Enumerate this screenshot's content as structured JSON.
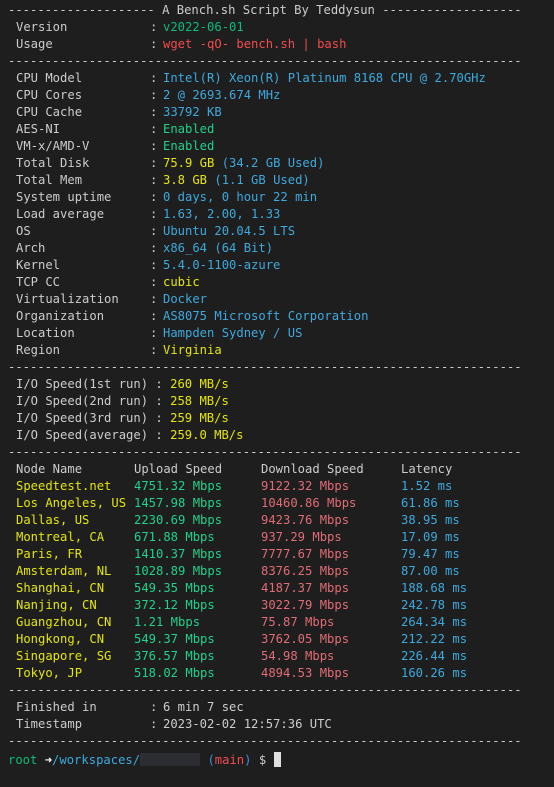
{
  "colors": {
    "bg": "#1e1e1e",
    "text": "#cccccc",
    "cyan": "#3fa9de",
    "yellow": "#e5e510",
    "green": "#23d18b",
    "red": "#f14c4c",
    "red_soft": "#e06c75",
    "blue": "#3b8eea",
    "green_prompt": "#0dbc79"
  },
  "separators": {
    "title": "-------------------- A Bench.sh Script By Teddysun -------------------",
    "plain": "----------------------------------------------------------------------"
  },
  "header": [
    {
      "key": "Version",
      "value": "v2022-06-01",
      "color": "green_prompt"
    },
    {
      "key": "Usage",
      "value": "wget -qO- bench.sh | bash",
      "color": "red"
    }
  ],
  "system": [
    {
      "key": "CPU Model",
      "parts": [
        {
          "t": "Intel(R) Xeon(R) Platinum 8168 CPU @ 2.70GHz",
          "color": "cyan"
        }
      ]
    },
    {
      "key": "CPU Cores",
      "parts": [
        {
          "t": "2 @ 2693.674 MHz",
          "color": "cyan"
        }
      ]
    },
    {
      "key": "CPU Cache",
      "parts": [
        {
          "t": "33792 KB",
          "color": "cyan"
        }
      ]
    },
    {
      "key": "AES-NI",
      "parts": [
        {
          "t": "Enabled",
          "color": "green"
        }
      ]
    },
    {
      "key": "VM-x/AMD-V",
      "parts": [
        {
          "t": "Enabled",
          "color": "green"
        }
      ]
    },
    {
      "key": "Total Disk",
      "parts": [
        {
          "t": "75.9 GB",
          "color": "yellow"
        },
        {
          "t": " (34.2 GB Used)",
          "color": "cyan"
        }
      ]
    },
    {
      "key": "Total Mem",
      "parts": [
        {
          "t": "3.8 GB",
          "color": "yellow"
        },
        {
          "t": " (1.1 GB Used)",
          "color": "cyan"
        }
      ]
    },
    {
      "key": "System uptime",
      "parts": [
        {
          "t": "0 days, 0 hour 22 min",
          "color": "cyan"
        }
      ]
    },
    {
      "key": "Load average",
      "parts": [
        {
          "t": "1.63, 2.00, 1.33",
          "color": "cyan"
        }
      ]
    },
    {
      "key": "OS",
      "parts": [
        {
          "t": "Ubuntu 20.04.5 LTS",
          "color": "cyan"
        }
      ]
    },
    {
      "key": "Arch",
      "parts": [
        {
          "t": "x86_64 (64 Bit)",
          "color": "cyan"
        }
      ]
    },
    {
      "key": "Kernel",
      "parts": [
        {
          "t": "5.4.0-1100-azure",
          "color": "cyan"
        }
      ]
    },
    {
      "key": "TCP CC",
      "parts": [
        {
          "t": "cubic",
          "color": "yellow"
        }
      ]
    },
    {
      "key": "Virtualization",
      "parts": [
        {
          "t": "Docker",
          "color": "cyan"
        }
      ]
    },
    {
      "key": "Organization",
      "parts": [
        {
          "t": "AS8075 Microsoft Corporation",
          "color": "cyan"
        }
      ]
    },
    {
      "key": "Location",
      "parts": [
        {
          "t": "Hampden Sydney / US",
          "color": "cyan"
        }
      ]
    },
    {
      "key": "Region",
      "parts": [
        {
          "t": "Virginia",
          "color": "yellow"
        }
      ]
    }
  ],
  "io": [
    {
      "key": "I/O Speed(1st run)",
      "value": "260 MB/s"
    },
    {
      "key": "I/O Speed(2nd run)",
      "value": "258 MB/s"
    },
    {
      "key": "I/O Speed(3rd run)",
      "value": "259 MB/s"
    },
    {
      "key": "I/O Speed(average)",
      "value": "259.0 MB/s"
    }
  ],
  "speed_table": {
    "headers": [
      "Node Name",
      "Upload Speed",
      "Download Speed",
      "Latency"
    ],
    "rows": [
      [
        "Speedtest.net",
        "4751.32 Mbps",
        "9122.32 Mbps",
        "1.52 ms"
      ],
      [
        "Los Angeles, US",
        "1457.98 Mbps",
        "10460.86 Mbps",
        "61.86 ms"
      ],
      [
        "Dallas, US",
        "2230.69 Mbps",
        "9423.76 Mbps",
        "38.95 ms"
      ],
      [
        "Montreal, CA",
        "671.88 Mbps",
        "937.29 Mbps",
        "17.09 ms"
      ],
      [
        "Paris, FR",
        "1410.37 Mbps",
        "7777.67 Mbps",
        "79.47 ms"
      ],
      [
        "Amsterdam, NL",
        "1028.89 Mbps",
        "8376.25 Mbps",
        "87.00 ms"
      ],
      [
        "Shanghai, CN",
        "549.35 Mbps",
        "4187.37 Mbps",
        "188.68 ms"
      ],
      [
        "Nanjing, CN",
        "372.12 Mbps",
        "3022.79 Mbps",
        "242.78 ms"
      ],
      [
        "Guangzhou, CN",
        "1.21 Mbps",
        "75.87 Mbps",
        "264.34 ms"
      ],
      [
        "Hongkong, CN",
        "549.37 Mbps",
        "3762.05 Mbps",
        "212.22 ms"
      ],
      [
        "Singapore, SG",
        "376.57 Mbps",
        "54.98 Mbps",
        "226.44 ms"
      ],
      [
        "Tokyo, JP",
        "518.02 Mbps",
        "4894.53 Mbps",
        "160.26 ms"
      ]
    ]
  },
  "footer": [
    {
      "key": "Finished in",
      "value": "6 min 7 sec"
    },
    {
      "key": "Timestamp",
      "value": "2023-02-02 12:57:36 UTC"
    }
  ],
  "colon": ":",
  "prompt": {
    "user": "root",
    "arrow": "➜",
    "path": "/workspaces/",
    "branch_open": "(",
    "branch": "main",
    "branch_close": ")",
    "symbol": "$"
  }
}
